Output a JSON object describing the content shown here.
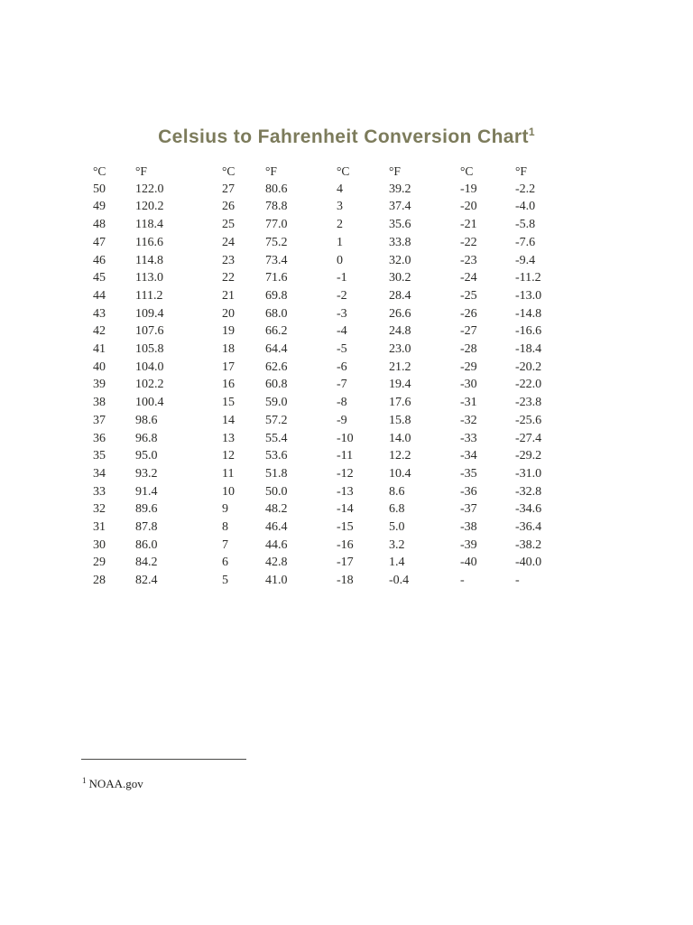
{
  "page": {
    "title": "Celsius to Fahrenheit Conversion Chart",
    "title_superscript": "1"
  },
  "colors": {
    "title_accent": "#7c7b5b",
    "body_text": "#2b2b28"
  },
  "table": {
    "headers": [
      "°C",
      "°F",
      "°C",
      "°F",
      "°C",
      "°F",
      "°C",
      "°F"
    ],
    "rows": [
      [
        "50",
        "122.0",
        "27",
        "80.6",
        "4",
        "39.2",
        "-19",
        "-2.2"
      ],
      [
        "49",
        "120.2",
        "26",
        "78.8",
        "3",
        "37.4",
        "-20",
        "-4.0"
      ],
      [
        "48",
        "118.4",
        "25",
        "77.0",
        "2",
        "35.6",
        "-21",
        "-5.8"
      ],
      [
        "47",
        "116.6",
        "24",
        "75.2",
        "1",
        "33.8",
        "-22",
        "-7.6"
      ],
      [
        "46",
        "114.8",
        "23",
        "73.4",
        "0",
        "32.0",
        "-23",
        "-9.4"
      ],
      [
        "45",
        "113.0",
        "22",
        "71.6",
        "-1",
        "30.2",
        "-24",
        "-11.2"
      ],
      [
        "44",
        "111.2",
        "21",
        "69.8",
        "-2",
        "28.4",
        "-25",
        "-13.0"
      ],
      [
        "43",
        "109.4",
        "20",
        "68.0",
        "-3",
        "26.6",
        "-26",
        "-14.8"
      ],
      [
        "42",
        "107.6",
        "19",
        "66.2",
        "-4",
        "24.8",
        "-27",
        "-16.6"
      ],
      [
        "41",
        "105.8",
        "18",
        "64.4",
        "-5",
        "23.0",
        "-28",
        "-18.4"
      ],
      [
        "40",
        "104.0",
        "17",
        "62.6",
        "-6",
        "21.2",
        "-29",
        "-20.2"
      ],
      [
        "39",
        "102.2",
        "16",
        "60.8",
        "-7",
        "19.4",
        "-30",
        "-22.0"
      ],
      [
        "38",
        "100.4",
        "15",
        "59.0",
        "-8",
        "17.6",
        "-31",
        "-23.8"
      ],
      [
        "37",
        "98.6",
        "14",
        "57.2",
        "-9",
        "15.8",
        "-32",
        "-25.6"
      ],
      [
        "36",
        "96.8",
        "13",
        "55.4",
        "-10",
        "14.0",
        "-33",
        "-27.4"
      ],
      [
        "35",
        "95.0",
        "12",
        "53.6",
        "-11",
        "12.2",
        "-34",
        "-29.2"
      ],
      [
        "34",
        "93.2",
        "11",
        "51.8",
        "-12",
        "10.4",
        "-35",
        "-31.0"
      ],
      [
        "33",
        "91.4",
        "10",
        "50.0",
        "-13",
        "8.6",
        "-36",
        "-32.8"
      ],
      [
        "32",
        "89.6",
        "9",
        "48.2",
        "-14",
        "6.8",
        "-37",
        "-34.6"
      ],
      [
        "31",
        "87.8",
        "8",
        "46.4",
        "-15",
        "5.0",
        "-38",
        "-36.4"
      ],
      [
        "30",
        "86.0",
        "7",
        "44.6",
        "-16",
        "3.2",
        "-39",
        "-38.2"
      ],
      [
        "29",
        "84.2",
        "6",
        "42.8",
        "-17",
        "1.4",
        "-40",
        "-40.0"
      ],
      [
        "28",
        "82.4",
        "5",
        "41.0",
        "-18",
        "-0.4",
        "-",
        "-"
      ]
    ]
  },
  "footnote": {
    "marker": "1",
    "text": "NOAA.gov"
  }
}
